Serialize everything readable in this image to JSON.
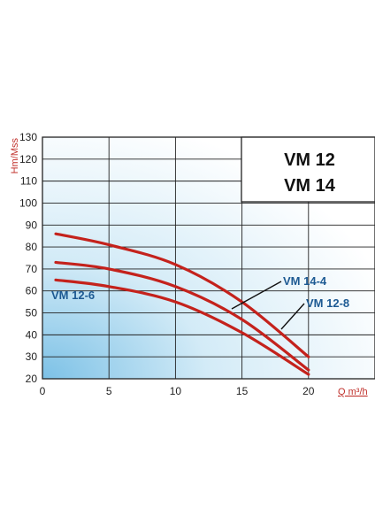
{
  "chart_data": {
    "type": "line",
    "title": [
      "VM 12",
      "VM 14"
    ],
    "xlabel": "Q m³/h",
    "ylabel": "Hm/Mss",
    "xlim": [
      0,
      20
    ],
    "ylim": [
      20,
      130
    ],
    "x_ticks": [
      "0",
      "5",
      "10",
      "15",
      "20"
    ],
    "y_ticks": [
      "20",
      "30",
      "40",
      "50",
      "60",
      "70",
      "80",
      "90",
      "100",
      "110",
      "120",
      "130"
    ],
    "grid": true,
    "series": [
      {
        "name": "VM 14-4",
        "points": [
          [
            1,
            86
          ],
          [
            5,
            81
          ],
          [
            10,
            72
          ],
          [
            15,
            55
          ],
          [
            20,
            30
          ]
        ]
      },
      {
        "name": "VM 12-8",
        "points": [
          [
            1,
            73
          ],
          [
            5,
            70
          ],
          [
            10,
            62
          ],
          [
            15,
            47
          ],
          [
            20,
            24
          ]
        ]
      },
      {
        "name": "VM 12-6",
        "points": [
          [
            1,
            65
          ],
          [
            5,
            62
          ],
          [
            10,
            55
          ],
          [
            15,
            41
          ],
          [
            20,
            22
          ]
        ]
      }
    ],
    "colors": {
      "curve": "#c4221c",
      "label": "#1d5a93",
      "axis_label": "#c0302b",
      "grid": "#222222",
      "gradient_light": "#ffffff",
      "gradient_dark": "#7cc1e6"
    }
  }
}
